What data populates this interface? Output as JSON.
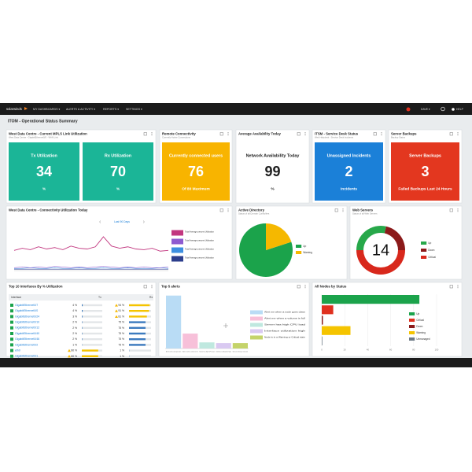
{
  "nav": {
    "logo": "solarwinds",
    "menus": [
      "MY DASHBOARDS ▾",
      "ALERTS & ACTIVITY ▾",
      "REPORTS ▾",
      "SETTINGS ▾"
    ],
    "user": "DAVE ▾",
    "help": "HELP"
  },
  "page_title": "ITOM - Operational Status Summary",
  "kpi_widgets": [
    {
      "title": "West Data Centre - Current MPLS Link Utilization",
      "subtitle": "West Data Centre - GigabitEthernet0/0 - WAN Link",
      "tiles": [
        {
          "label": "Tx Utilization",
          "value": 34,
          "unit": "%",
          "color": "#1bb597"
        },
        {
          "label": "Rx Utilization",
          "value": 70,
          "unit": "%",
          "color": "#1bb597"
        }
      ]
    },
    {
      "title": "Remote Connectivity",
      "subtitle": "Currently Active Connections",
      "tiles": [
        {
          "label": "Currently connected users",
          "value": 76,
          "unit": "Of 80 Maximum",
          "color": "#f8b400"
        }
      ]
    },
    {
      "title": "Average Availability Today",
      "tiles": [
        {
          "label": "Network Availability Today",
          "value": 99,
          "unit": "%",
          "color": "#ffffff"
        }
      ]
    },
    {
      "title": "ITSM - Service Desk Status",
      "subtitle": "Web Helpdesk - Service Desk Incidents",
      "tiles": [
        {
          "label": "Unassigned Incidents",
          "value": 2,
          "unit": "Incidents",
          "color": "#1b80d8"
        }
      ]
    },
    {
      "title": "Server Backups",
      "subtitle": "Backup Status",
      "tiles": [
        {
          "label": "Server Backups",
          "value": 3,
          "unit": "Failed Backups Last 24 Hours",
          "color": "#e3371f"
        }
      ]
    }
  ],
  "interfaces_table": {
    "title": "Top 10 Interfaces By % Utilization",
    "columns": [
      "Interface",
      "Tx",
      "Rx"
    ],
    "unit": "%",
    "rows": [
      {
        "name": "GigabitEthernet0/7",
        "tx": 4,
        "rx": 94
      },
      {
        "name": "GigabitEthernet0/0",
        "tx": 4,
        "rx": 91
      },
      {
        "name": "GigabitEthernet0/24",
        "tx": 3,
        "rx": 81
      },
      {
        "name": "GigabitEthernet0/10",
        "tx": 2,
        "rx": 75
      },
      {
        "name": "GigabitEthernet0/12",
        "tx": 2,
        "rx": 75
      },
      {
        "name": "GigabitEthernet0/40",
        "tx": 2,
        "rx": 75
      },
      {
        "name": "GigabitEthernet0/46",
        "tx": 2,
        "rx": 75
      },
      {
        "name": "GigabitEthernet0/2",
        "tx": 1,
        "rx": 75
      },
      {
        "name": "eth0",
        "tx": 80,
        "rx": 1
      },
      {
        "name": "GigabitEthernet0/1",
        "tx": 80,
        "rx": 1
      }
    ]
  },
  "chart_data": [
    {
      "type": "line",
      "title": "West Data Centre - Connectivity Utilization Today",
      "range_label": "Last 90 Days",
      "ylim": [
        0,
        60
      ],
      "series": [
        {
          "name": "Total Average percent Utilization",
          "color": "#c2367f",
          "values": [
            28,
            31,
            29,
            33,
            30,
            32,
            29,
            34,
            31,
            30,
            33,
            47,
            34,
            31,
            33,
            30,
            29,
            31,
            27,
            28
          ]
        },
        {
          "name": "Total Average percent Utilization",
          "color": "#8e5bd0",
          "values": [
            4,
            5,
            4,
            5,
            4,
            6,
            5,
            4,
            5,
            4,
            5,
            6,
            5,
            4,
            5,
            4,
            5,
            4,
            4,
            5
          ]
        },
        {
          "name": "Total Average percent Utilization",
          "color": "#3d8fe0",
          "values": [
            3,
            3,
            4,
            3,
            3,
            4,
            3,
            3,
            4,
            3,
            3,
            4,
            3,
            3,
            4,
            3,
            3,
            3,
            4,
            3
          ]
        },
        {
          "name": "Total Average percent Utilization",
          "color": "#2c3e8c",
          "values": [
            2,
            2,
            2,
            2,
            2,
            2,
            2,
            2,
            2,
            2,
            2,
            2,
            2,
            2,
            2,
            2,
            2,
            2,
            2,
            2
          ]
        }
      ]
    },
    {
      "type": "pie",
      "title": "Active Directory",
      "subtitle": "Status of all Domain Controllers",
      "categories": [
        "Up",
        "Warning"
      ],
      "values": [
        80,
        20
      ],
      "colors": [
        "#1ba34b",
        "#f5b800"
      ]
    },
    {
      "type": "donut",
      "title": "Web Servers",
      "subtitle": "Status of all Web Servers",
      "total": 14,
      "categories": [
        "Up",
        "Down",
        "Critical"
      ],
      "values": [
        4,
        3,
        7
      ],
      "colors": [
        "#27a84a",
        "#8b1a1a",
        "#d8281c"
      ]
    },
    {
      "type": "bar",
      "title": "Top 5 alerts",
      "ylim": [
        0,
        80
      ],
      "categories": [
        "Alert me when a node goes down",
        "Alert me when a volume is full",
        "Server has high CPU load",
        "Interface utilization high",
        "Node is in a Warning or Critical state"
      ],
      "values": [
        78,
        22,
        9,
        8,
        8
      ],
      "colors": [
        "#b9dcf5",
        "#f7c0d9",
        "#bfe8df",
        "#d9c9f1",
        "#c4d36a"
      ]
    },
    {
      "type": "hbar",
      "title": "All Nodes by Status",
      "xlim": [
        0,
        100
      ],
      "xticks": [
        0,
        20,
        40,
        60,
        80,
        100
      ],
      "categories": [
        "Up",
        "Critical",
        "Down",
        "Warning",
        "Unmanaged"
      ],
      "values": [
        85,
        10,
        1,
        25,
        0.5
      ],
      "colors": [
        "#1ba34b",
        "#e0301e",
        "#8b1a1a",
        "#f5c400",
        "#6d7a86"
      ]
    }
  ]
}
